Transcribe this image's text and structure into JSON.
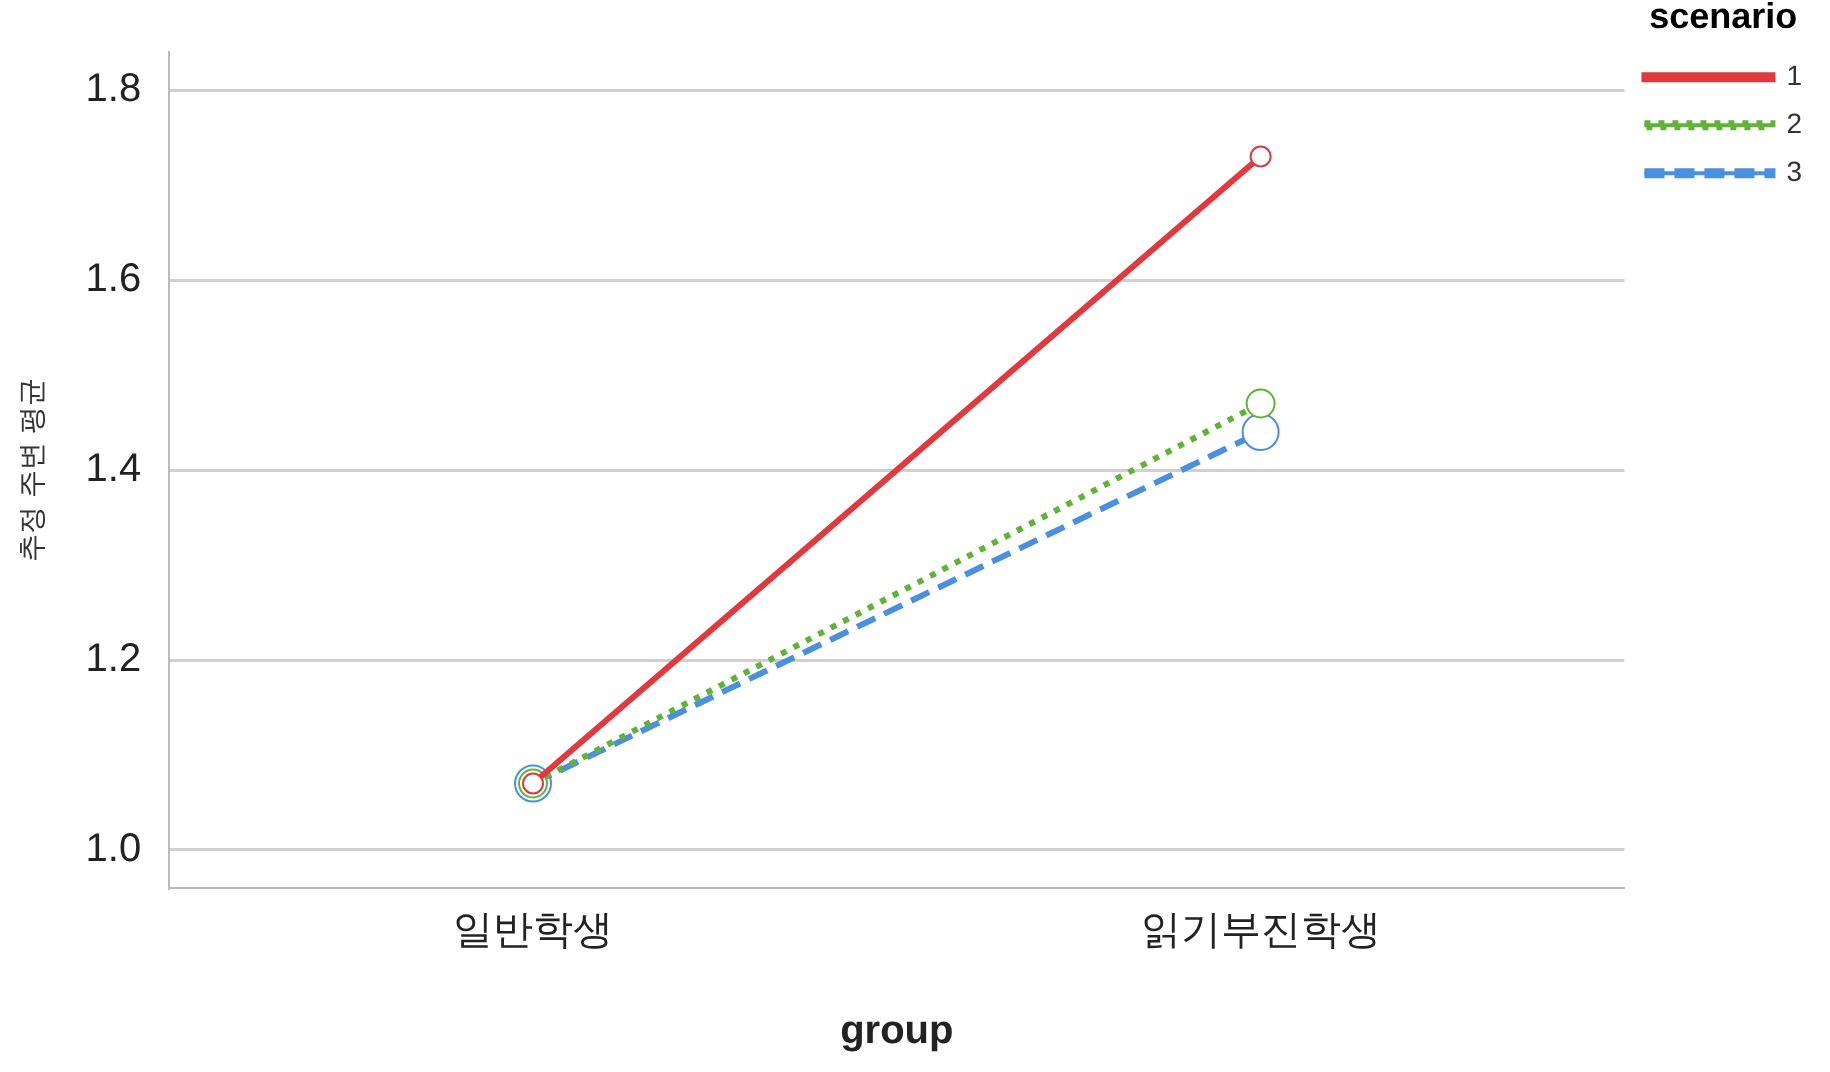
{
  "chart_data": {
    "type": "line",
    "xlabel": "group",
    "ylabel": "추정 주변 평균",
    "legend_title": "scenario",
    "legend": "top right",
    "grid": "y",
    "marker": "circle",
    "categories": [
      "일반학생",
      "읽기부진학생"
    ],
    "ylim": [
      0.96,
      1.84
    ],
    "yticks": [
      {
        "value": 1.0,
        "label": "1.0"
      },
      {
        "value": 1.2,
        "label": "1.2"
      },
      {
        "value": 1.4,
        "label": "1.4"
      },
      {
        "value": 1.6,
        "label": "1.6"
      },
      {
        "value": 1.8,
        "label": "1.8"
      }
    ],
    "series": [
      {
        "name": "1",
        "color": "#e0393e",
        "line_style": "solid",
        "values": [
          1.07,
          1.73
        ]
      },
      {
        "name": "2",
        "color": "#5fb336",
        "line_style": "dotted",
        "values": [
          1.07,
          1.47
        ]
      },
      {
        "name": "3",
        "color": "#4a8fe0",
        "line_style": "dashed",
        "values": [
          1.07,
          1.44
        ]
      }
    ]
  }
}
